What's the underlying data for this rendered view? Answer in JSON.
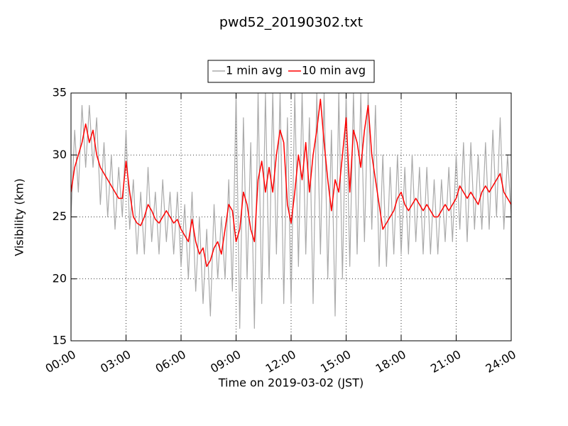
{
  "chart_data": {
    "type": "line",
    "title": "pwd52_20190302.txt",
    "xlabel": "Time on 2019-03-02 (JST)",
    "ylabel": "Visibility (km)",
    "x": [
      0,
      0.2,
      0.4,
      0.6,
      0.8,
      1,
      1.2,
      1.4,
      1.6,
      1.8,
      2,
      2.2,
      2.4,
      2.6,
      2.8,
      3,
      3.2,
      3.4,
      3.6,
      3.8,
      4,
      4.2,
      4.4,
      4.6,
      4.8,
      5,
      5.2,
      5.4,
      5.6,
      5.8,
      6,
      6.2,
      6.4,
      6.6,
      6.8,
      7,
      7.2,
      7.4,
      7.6,
      7.8,
      8,
      8.2,
      8.4,
      8.6,
      8.8,
      9,
      9.2,
      9.4,
      9.6,
      9.8,
      10,
      10.2,
      10.4,
      10.6,
      10.8,
      11,
      11.2,
      11.4,
      11.6,
      11.8,
      12,
      12.2,
      12.4,
      12.6,
      12.8,
      13,
      13.2,
      13.4,
      13.6,
      13.8,
      14,
      14.2,
      14.4,
      14.6,
      14.8,
      15,
      15.2,
      15.4,
      15.6,
      15.8,
      16,
      16.2,
      16.4,
      16.6,
      16.8,
      17,
      17.2,
      17.4,
      17.6,
      17.8,
      18,
      18.2,
      18.4,
      18.6,
      18.8,
      19,
      19.2,
      19.4,
      19.6,
      19.8,
      20,
      20.2,
      20.4,
      20.6,
      20.8,
      21,
      21.2,
      21.4,
      21.6,
      21.8,
      22,
      22.2,
      22.4,
      22.6,
      22.8,
      23,
      23.2,
      23.4,
      23.6,
      23.8,
      24
    ],
    "series": [
      {
        "name": "1 min avg",
        "color": "#aaaaaa",
        "values": [
          25,
          32,
          27,
          34,
          29,
          34,
          29,
          33,
          26,
          31,
          25,
          30,
          24,
          29,
          25,
          32,
          24,
          28,
          22,
          27,
          22,
          29,
          23,
          27,
          22,
          28,
          23,
          27,
          22,
          27,
          21,
          26,
          20,
          27,
          19,
          25,
          18,
          24,
          17,
          26,
          20,
          25,
          20,
          28,
          19,
          35,
          16,
          33,
          20,
          31,
          16,
          35,
          18,
          35,
          20,
          35,
          22,
          35,
          18,
          33,
          18,
          35,
          21,
          35,
          22,
          33,
          18,
          35,
          22,
          35,
          20,
          32,
          17,
          35,
          20,
          35,
          21,
          35,
          22,
          35,
          23,
          35,
          24,
          34,
          21,
          30,
          21,
          29,
          22,
          30,
          22,
          29,
          22,
          30,
          23,
          29,
          22,
          29,
          22,
          28,
          22,
          28,
          23,
          29,
          23,
          30,
          24,
          31,
          23,
          31,
          24,
          30,
          24,
          31,
          24,
          32,
          25,
          33,
          24,
          30,
          25
        ]
      },
      {
        "name": "10 min avg",
        "color": "#ff0000",
        "values": [
          27,
          29,
          30,
          31,
          32.5,
          31,
          32,
          30,
          29,
          28.5,
          28,
          27.5,
          27,
          26.5,
          26.5,
          29.5,
          27,
          25,
          24.5,
          24.3,
          25,
          26,
          25.5,
          24.8,
          24.5,
          25,
          25.5,
          25,
          24.5,
          24.8,
          24,
          23.5,
          23,
          24.8,
          23,
          22,
          22.5,
          21,
          21.5,
          22.5,
          23,
          22,
          24,
          26,
          25.5,
          23,
          24,
          27,
          26,
          24,
          23,
          28,
          29.5,
          27,
          29,
          27,
          30,
          32,
          31,
          26,
          24.5,
          27,
          30,
          28,
          31,
          27,
          30,
          32,
          34.5,
          31,
          28,
          25.5,
          28,
          27,
          30,
          33,
          27,
          32,
          31,
          29,
          32,
          34,
          30,
          28,
          26,
          24,
          24.5,
          25,
          25.5,
          26.5,
          27,
          26,
          25.5,
          26,
          26.5,
          26,
          25.5,
          26,
          25.5,
          25,
          25,
          25.5,
          26,
          25.5,
          26,
          26.5,
          27.5,
          27,
          26.5,
          27,
          26.5,
          26,
          27,
          27.5,
          27,
          27.5,
          28,
          28.5,
          27,
          26.5,
          26
        ]
      }
    ],
    "xlim": [
      0,
      24
    ],
    "xticks": [
      {
        "value": 0,
        "label": "00:00"
      },
      {
        "value": 3,
        "label": "03:00"
      },
      {
        "value": 6,
        "label": "06:00"
      },
      {
        "value": 9,
        "label": "09:00"
      },
      {
        "value": 12,
        "label": "12:00"
      },
      {
        "value": 15,
        "label": "15:00"
      },
      {
        "value": 18,
        "label": "18:00"
      },
      {
        "value": 21,
        "label": "21:00"
      },
      {
        "value": 24,
        "label": "24:00"
      }
    ],
    "ylim": [
      15,
      35
    ],
    "yticks": [
      15,
      20,
      25,
      30,
      35
    ],
    "grid": true,
    "legend": "top"
  }
}
